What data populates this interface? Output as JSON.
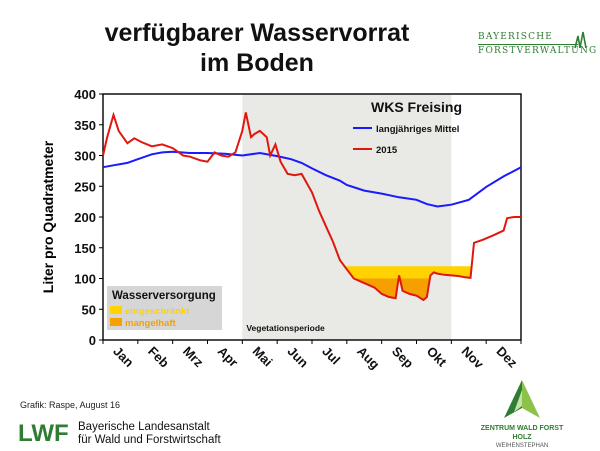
{
  "title_line1": "verfügbarer Wasservorrat",
  "title_line2": "im Boden",
  "brand": {
    "line1": "BAYERISCHE",
    "line2": "FORSTVERWALTUNG"
  },
  "credit": "Grafik: Raspe, August 16",
  "institution": {
    "logo_text": "LWF",
    "line1": "Bayerische Landesanstalt",
    "line2": "für Wald und Forstwirtschaft"
  },
  "partner": {
    "line1": "ZENTRUM WALD FORST HOLZ",
    "line2": "WEIHENSTEPHAN"
  },
  "colors": {
    "mean": "#1a1aff",
    "year": "#e0170f",
    "eingeschraenkt": "#ffd200",
    "mangelhaft": "#f5a000",
    "vegetation_bg": "#e9e9e6",
    "legend_bg": "#d6d6d6",
    "brand_green": "#2e7d32"
  },
  "chart_data": {
    "type": "line",
    "title": "",
    "ylabel": "Liter pro Quadratmeter",
    "xlabel": "",
    "ylim": [
      0,
      400
    ],
    "yticks": [
      0,
      50,
      100,
      150,
      200,
      250,
      300,
      350,
      400
    ],
    "xlim": [
      0,
      12
    ],
    "months": [
      "Jan",
      "Feb",
      "Mrz",
      "Apr",
      "Mai",
      "Jun",
      "Jul",
      "Aug",
      "Sep",
      "Okt",
      "Nov",
      "Dez"
    ],
    "station_label": "WKS Freising",
    "vegetation_period": {
      "label": "Vegetationsperiode",
      "start": 4,
      "end": 10
    },
    "thresholds": {
      "eingeschraenkt": 120,
      "mangelhaft": 100
    },
    "supply_legend": {
      "title": "Wasserversorgung",
      "items": [
        "eingeschränkt",
        "mangelhaft"
      ]
    },
    "series": [
      {
        "name": "langjähriges Mittel",
        "x": [
          0,
          0.3,
          0.7,
          1,
          1.4,
          1.7,
          2,
          2.5,
          3,
          3.5,
          4,
          4.5,
          5,
          5.4,
          5.7,
          6,
          6.4,
          6.8,
          7,
          7.5,
          8,
          8.5,
          9,
          9.3,
          9.6,
          10,
          10.5,
          11,
          11.5,
          12
        ],
        "y": [
          281,
          284,
          288,
          294,
          302,
          305,
          306,
          304,
          304,
          303,
          300,
          304,
          299,
          294,
          288,
          279,
          268,
          259,
          252,
          243,
          238,
          232,
          228,
          221,
          217,
          220,
          228,
          249,
          266,
          281
        ]
      },
      {
        "name": "2015",
        "x": [
          0,
          0.12,
          0.3,
          0.45,
          0.7,
          0.9,
          1.1,
          1.4,
          1.7,
          2,
          2.3,
          2.5,
          2.8,
          3,
          3.2,
          3.4,
          3.6,
          3.8,
          4,
          4.1,
          4.25,
          4.35,
          4.5,
          4.7,
          4.8,
          4.95,
          5.1,
          5.3,
          5.5,
          5.7,
          6,
          6.2,
          6.4,
          6.6,
          6.8,
          7,
          7.2,
          7.4,
          7.6,
          7.8,
          8,
          8.2,
          8.4,
          8.5,
          8.6,
          8.8,
          9,
          9.2,
          9.3,
          9.4,
          9.5,
          9.6,
          9.8,
          10,
          10.2,
          10.4,
          10.55,
          10.65,
          10.9,
          11.2,
          11.5,
          11.6,
          11.8,
          12
        ],
        "y": [
          300,
          330,
          366,
          340,
          320,
          328,
          322,
          315,
          318,
          312,
          300,
          298,
          292,
          290,
          305,
          300,
          298,
          305,
          340,
          370,
          330,
          335,
          340,
          330,
          300,
          318,
          290,
          270,
          268,
          270,
          240,
          210,
          185,
          160,
          130,
          115,
          100,
          95,
          90,
          85,
          75,
          70,
          68,
          105,
          80,
          75,
          72,
          65,
          70,
          105,
          110,
          108,
          106,
          105,
          104,
          102,
          101,
          158,
          163,
          170,
          178,
          198,
          200,
          200
        ]
      }
    ]
  }
}
